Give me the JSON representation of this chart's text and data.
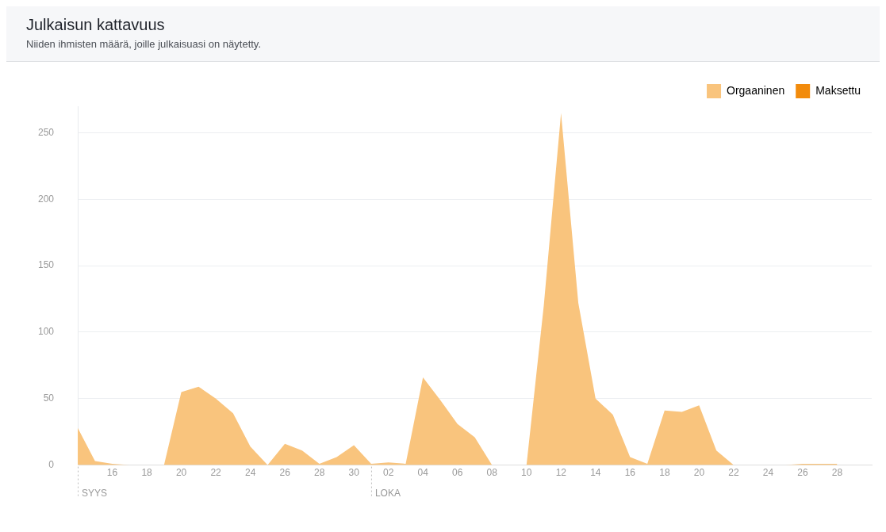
{
  "chart_data": {
    "type": "area",
    "title": "Julkaisun kattavuus",
    "subtitle": "Niiden ihmisten määrä, joille julkaisuasi on näytetty.",
    "x": [
      "--09-14",
      "--09-15",
      "--09-16",
      "--09-17",
      "--09-18",
      "--09-19",
      "--09-20",
      "--09-21",
      "--09-22",
      "--09-23",
      "--09-24",
      "--09-25",
      "--09-26",
      "--09-27",
      "--09-28",
      "--09-29",
      "--09-30",
      "--10-01",
      "--10-02",
      "--10-03",
      "--10-04",
      "--10-05",
      "--10-06",
      "--10-07",
      "--10-08",
      "--10-09",
      "--10-10",
      "--10-11",
      "--10-12",
      "--10-13",
      "--10-14",
      "--10-15",
      "--10-16",
      "--10-17",
      "--10-18",
      "--10-19",
      "--10-20",
      "--10-21",
      "--10-22",
      "--10-23",
      "--10-24",
      "--10-25",
      "--10-26",
      "--10-27",
      "--10-28"
    ],
    "series": [
      {
        "name": "Orgaaninen",
        "color": "#f9c47d",
        "values": [
          28,
          3,
          1,
          0,
          0,
          0,
          55,
          59,
          50,
          39,
          14,
          0,
          16,
          11,
          1,
          6,
          15,
          1,
          2,
          1,
          66,
          49,
          31,
          21,
          0,
          0,
          0,
          120,
          265,
          122,
          50,
          38,
          6,
          1,
          41,
          40,
          45,
          11,
          0,
          0,
          0,
          0,
          1,
          1,
          1
        ]
      },
      {
        "name": "Maksettu",
        "color": "#f28b0c",
        "values": [
          null,
          null,
          null,
          null,
          null,
          null,
          null,
          null,
          null,
          null,
          null,
          null,
          null,
          null,
          null,
          null,
          null,
          null,
          null,
          null,
          null,
          null,
          null,
          null,
          null,
          null,
          null,
          null,
          null,
          null,
          null,
          null,
          null,
          null,
          null,
          null,
          null,
          null,
          null,
          null,
          null,
          null,
          null,
          null,
          null
        ]
      }
    ],
    "xlim": [
      "--09-14",
      "--10-30"
    ],
    "xticks": [
      {
        "value": "--09-16",
        "label": "16"
      },
      {
        "value": "--09-18",
        "label": "18"
      },
      {
        "value": "--09-20",
        "label": "20"
      },
      {
        "value": "--09-22",
        "label": "22"
      },
      {
        "value": "--09-24",
        "label": "24"
      },
      {
        "value": "--09-26",
        "label": "26"
      },
      {
        "value": "--09-28",
        "label": "28"
      },
      {
        "value": "--09-30",
        "label": "30"
      },
      {
        "value": "--10-02",
        "label": "02"
      },
      {
        "value": "--10-04",
        "label": "04"
      },
      {
        "value": "--10-06",
        "label": "06"
      },
      {
        "value": "--10-08",
        "label": "08"
      },
      {
        "value": "--10-10",
        "label": "10"
      },
      {
        "value": "--10-12",
        "label": "12"
      },
      {
        "value": "--10-14",
        "label": "14"
      },
      {
        "value": "--10-16",
        "label": "16"
      },
      {
        "value": "--10-18",
        "label": "18"
      },
      {
        "value": "--10-20",
        "label": "20"
      },
      {
        "value": "--10-22",
        "label": "22"
      },
      {
        "value": "--10-24",
        "label": "24"
      },
      {
        "value": "--10-26",
        "label": "26"
      },
      {
        "value": "--10-28",
        "label": "28"
      }
    ],
    "ylim": [
      0,
      270
    ],
    "yticks": [
      0,
      50,
      100,
      150,
      200,
      250
    ],
    "ref_lines": [
      {
        "axis": "x",
        "value": "--09-14",
        "label": "SYYS",
        "line_style": "dotted",
        "color": "#bbbbbb"
      },
      {
        "axis": "x",
        "value": "--10-01",
        "label": "LOKA",
        "line_style": "dotted",
        "color": "#bbbbbb"
      }
    ],
    "grid": "y",
    "legend": "top right",
    "marker": "none"
  }
}
